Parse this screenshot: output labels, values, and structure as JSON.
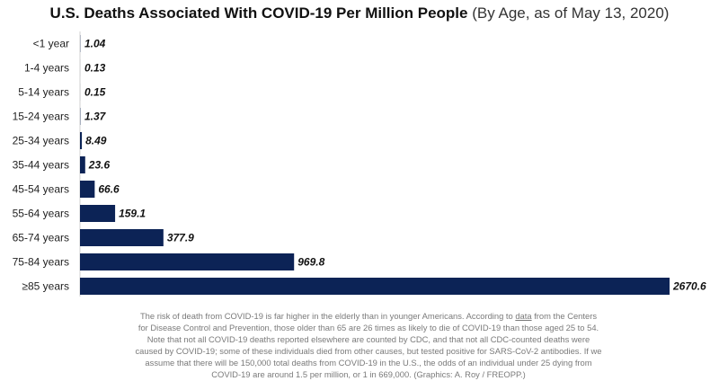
{
  "title": {
    "main": "U.S. Deaths Associated With COVID-19 Per Million People",
    "sub": "(By Age, as of May 13, 2020)"
  },
  "chart_data": {
    "type": "bar",
    "orientation": "horizontal",
    "title": "U.S. Deaths Associated With COVID-19 Per Million People (By Age, as of May 13, 2020)",
    "categories": [
      "<1 year",
      "1-4 years",
      "5-14 years",
      "15-24 years",
      "25-34 years",
      "35-44 years",
      "45-54 years",
      "55-64 years",
      "65-74 years",
      "75-84 years",
      "≥85 years"
    ],
    "values": [
      1.04,
      0.13,
      0.15,
      1.37,
      8.49,
      23.6,
      66.6,
      159.1,
      377.9,
      969.8,
      2670.6
    ],
    "value_labels": [
      "1.04",
      "0.13",
      "0.15",
      "1.37",
      "8.49",
      "23.6",
      "66.6",
      "159.1",
      "377.9",
      "969.8",
      "2670.6"
    ],
    "bar_color": "#0c2356",
    "xlim": [
      0,
      2670.6
    ],
    "grid": false,
    "legend": "none"
  },
  "caption": {
    "part1": "The risk of death from COVID-19 is far higher in the elderly than in younger Americans. According to ",
    "link": "data",
    "part2": " from the Centers for Disease Control and Prevention, those older than 65 are 26 times as likely to die of COVID-19 than those aged 25 to 54. Note that not all COVID-19 deaths reported elsewhere are counted by CDC, and that not all CDC-counted deaths were caused by COVID-19; some of these individuals died from other causes, but tested positive for SARS-CoV-2 antibodies. If we assume that there will be 150,000 total deaths from COVID-19 in the U.S., the odds of an individual under 25 dying from COVID-19 are around 1.5 per million, or 1 in 669,000. (Graphics: A. Roy / FREOPP.)"
  }
}
